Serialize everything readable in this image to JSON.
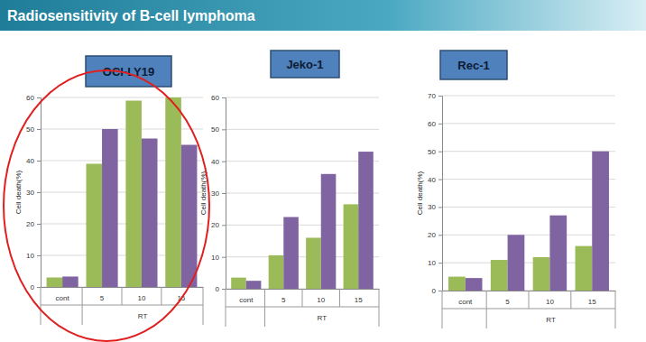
{
  "title": "Radiosensitivity of B-cell lymphoma",
  "chart_data": [
    {
      "type": "bar",
      "title": "OCI-LY19",
      "ylabel": "Cell death(%)",
      "categories": [
        "cont",
        "5",
        "10",
        "15"
      ],
      "annotations": [
        "RT"
      ],
      "series": [
        {
          "color": "#9bbb59",
          "values": [
            3,
            39,
            59,
            60
          ]
        },
        {
          "color": "#8064a2",
          "values": [
            3.3,
            50,
            47,
            45
          ]
        }
      ],
      "ylim": [
        0,
        60
      ],
      "yticks": [
        0,
        10,
        20,
        30,
        40,
        50,
        60
      ],
      "grid": true
    },
    {
      "type": "bar",
      "title": "Jeko-1",
      "ylabel": "Cell death(%)",
      "categories": [
        "cont",
        "5",
        "10",
        "15"
      ],
      "annotations": [
        "RT"
      ],
      "series": [
        {
          "color": "#9bbb59",
          "values": [
            3.5,
            10.5,
            16,
            26.5
          ]
        },
        {
          "color": "#8064a2",
          "values": [
            2.5,
            22.5,
            36,
            43
          ]
        }
      ],
      "ylim": [
        0,
        60
      ],
      "yticks": [
        0,
        10,
        20,
        30,
        40,
        50,
        60
      ],
      "grid": true
    },
    {
      "type": "bar",
      "title": "Rec-1",
      "ylabel": "Cell death(%)",
      "categories": [
        "cont",
        "5",
        "10",
        "15"
      ],
      "annotations": [
        "RT"
      ],
      "series": [
        {
          "color": "#9bbb59",
          "values": [
            5,
            11,
            12,
            16
          ]
        },
        {
          "color": "#8064a2",
          "values": [
            4.5,
            20,
            27,
            50
          ]
        }
      ],
      "ylim": [
        0,
        70
      ],
      "yticks": [
        0,
        10,
        20,
        30,
        40,
        50,
        60,
        70
      ],
      "grid": true
    }
  ]
}
